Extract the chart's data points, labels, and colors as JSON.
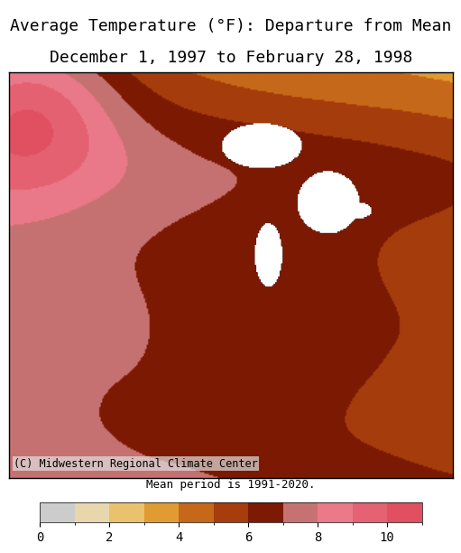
{
  "title_line1": "Average Temperature (°F): Departure from Mean",
  "title_line2": "December 1, 1997 to February 28, 1998",
  "footnote": "Mean period is 1991-2020.",
  "copyright": "(C) Midwestern Regional Climate Center",
  "colorbar_ticks": [
    0,
    2,
    4,
    6,
    8,
    10
  ],
  "colorbar_label": "",
  "vmin": 0,
  "vmax": 11,
  "colorbar_colors": [
    "#cccccc",
    "#e8d8b0",
    "#e8c87a",
    "#e8a83a",
    "#d07820",
    "#b85010",
    "#902808",
    "#701000",
    "#f0a0a8",
    "#e87080",
    "#e05060"
  ],
  "colorbar_boundaries": [
    0,
    1,
    2,
    3,
    4,
    5,
    6,
    7,
    8,
    9,
    10,
    11
  ],
  "bg_color": "#ffffff",
  "title_fontsize": 13,
  "tick_fontsize": 10,
  "footnote_fontsize": 9,
  "copyright_fontsize": 8.5
}
